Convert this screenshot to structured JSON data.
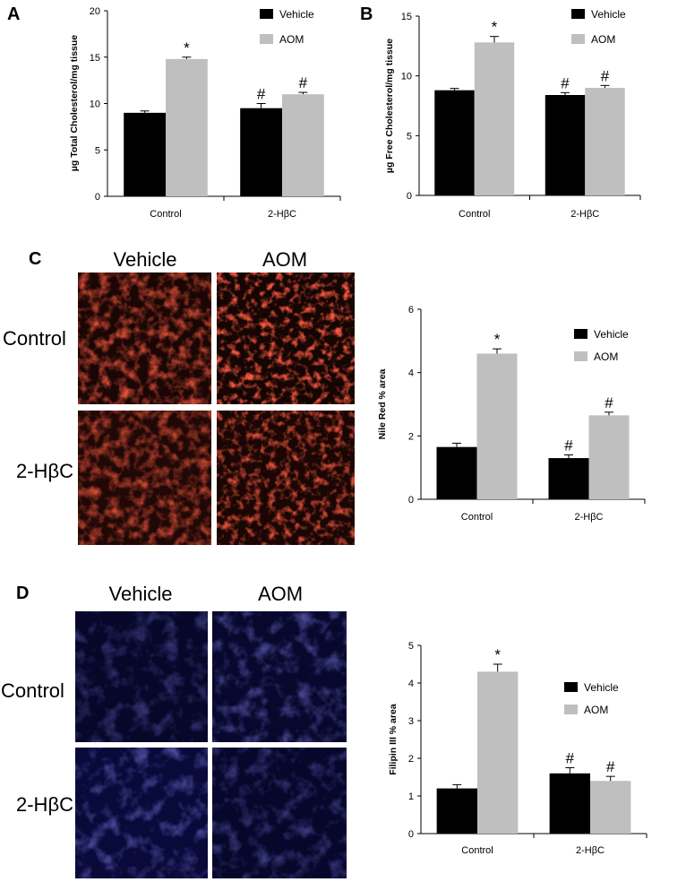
{
  "panels": {
    "A": "A",
    "B": "B",
    "C": "C",
    "D": "D"
  },
  "colors": {
    "vehicle": "#000000",
    "aom": "#bfbfbf",
    "nile_red_stain": "#b01a0a",
    "filipin_stain": "#1a1a7a"
  },
  "image_grids": {
    "C": {
      "col_labels": [
        "Vehicle",
        "AOM"
      ],
      "row_labels": [
        "Control",
        "2-HβC"
      ],
      "stain_color": "#b01a0a"
    },
    "D": {
      "col_labels": [
        "Vehicle",
        "AOM"
      ],
      "row_labels": [
        "Control",
        "2-HβC"
      ],
      "stain_color": "#1a1a7a"
    }
  },
  "chart_data": [
    {
      "panel": "A",
      "type": "bar",
      "title": "",
      "xlabel": "",
      "ylabel": "µg Total Cholesterol/mg tissue",
      "categories": [
        "Control",
        "2-HβC"
      ],
      "ylim": [
        0,
        20
      ],
      "yticks": [
        0,
        5,
        10,
        15,
        20
      ],
      "legend_position": "top-right",
      "series": [
        {
          "name": "Vehicle",
          "color": "#000000",
          "values": [
            9.0,
            9.5
          ],
          "errors": [
            0.2,
            0.5
          ],
          "marks": [
            "",
            "#"
          ]
        },
        {
          "name": "AOM",
          "color": "#bfbfbf",
          "values": [
            14.8,
            11.0
          ],
          "errors": [
            0.2,
            0.2
          ],
          "marks": [
            "*",
            "#"
          ]
        }
      ]
    },
    {
      "panel": "B",
      "type": "bar",
      "title": "",
      "xlabel": "",
      "ylabel": "µg Free Cholesterol/mg tissue",
      "categories": [
        "Control",
        "2-HβC"
      ],
      "ylim": [
        0,
        15
      ],
      "yticks": [
        0,
        5,
        10,
        15
      ],
      "legend_position": "top-right",
      "series": [
        {
          "name": "Vehicle",
          "color": "#000000",
          "values": [
            8.8,
            8.4
          ],
          "errors": [
            0.15,
            0.2
          ],
          "marks": [
            "",
            "#"
          ]
        },
        {
          "name": "AOM",
          "color": "#bfbfbf",
          "values": [
            12.8,
            9.0
          ],
          "errors": [
            0.5,
            0.2
          ],
          "marks": [
            "*",
            "#"
          ]
        }
      ]
    },
    {
      "panel": "C",
      "type": "bar",
      "title": "",
      "xlabel": "",
      "ylabel": "Nile Red % area",
      "categories": [
        "Control",
        "2-HβC"
      ],
      "ylim": [
        0,
        6
      ],
      "yticks": [
        0,
        2,
        4,
        6
      ],
      "legend_position": "top-right",
      "series": [
        {
          "name": "Vehicle",
          "color": "#000000",
          "values": [
            1.65,
            1.3
          ],
          "errors": [
            0.12,
            0.1
          ],
          "marks": [
            "",
            "#"
          ]
        },
        {
          "name": "AOM",
          "color": "#bfbfbf",
          "values": [
            4.6,
            2.65
          ],
          "errors": [
            0.15,
            0.1
          ],
          "marks": [
            "*",
            "#"
          ]
        }
      ]
    },
    {
      "panel": "D",
      "type": "bar",
      "title": "",
      "xlabel": "",
      "ylabel": "Filipin III % area",
      "categories": [
        "Control",
        "2-HβC"
      ],
      "ylim": [
        0,
        5
      ],
      "yticks": [
        0,
        1,
        2,
        3,
        4,
        5
      ],
      "legend_position": "right",
      "series": [
        {
          "name": "Vehicle",
          "color": "#000000",
          "values": [
            1.2,
            1.6
          ],
          "errors": [
            0.1,
            0.15
          ],
          "marks": [
            "",
            "#"
          ]
        },
        {
          "name": "AOM",
          "color": "#bfbfbf",
          "values": [
            4.3,
            1.4
          ],
          "errors": [
            0.2,
            0.12
          ],
          "marks": [
            "*",
            "#"
          ]
        }
      ]
    }
  ]
}
